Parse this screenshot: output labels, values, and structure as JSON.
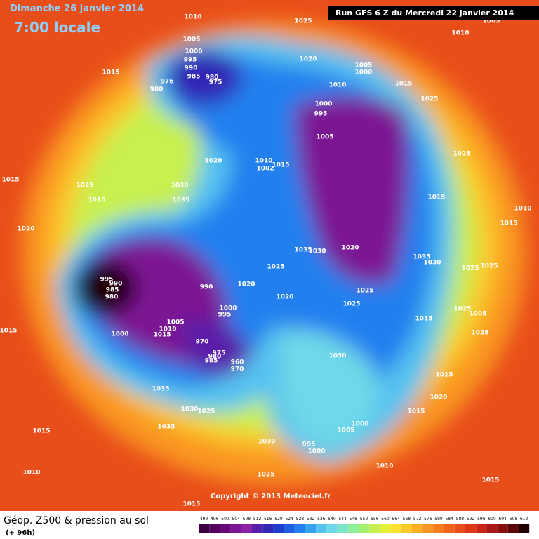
{
  "header": {
    "date": "Dimanche 26 janvier 2014",
    "time": "7:00 locale",
    "run": "Run GFS 6 Z du Mercredi 22 janvier 2014"
  },
  "footer": {
    "copyright": "Copyright © 2013 Meteociel.fr",
    "product": "Géop. Z500 & pression au sol",
    "lead": "(+ 96h)"
  },
  "scale": {
    "values": [
      492,
      496,
      500,
      504,
      508,
      512,
      516,
      520,
      524,
      528,
      532,
      536,
      540,
      544,
      548,
      552,
      556,
      560,
      564,
      568,
      572,
      576,
      580,
      584,
      588,
      592,
      596,
      600,
      604,
      608,
      612
    ],
    "colors": [
      "#3a0040",
      "#55005f",
      "#6a0a7a",
      "#7d1693",
      "#8a22a8",
      "#5a1fa8",
      "#3327b5",
      "#1f3fcc",
      "#1f5ee0",
      "#2480ee",
      "#35a2f0",
      "#55c2f0",
      "#6fd8e8",
      "#7ee6c8",
      "#8eee9a",
      "#a6f070",
      "#c8f050",
      "#e6f03a",
      "#fae232",
      "#fcc82c",
      "#fbae28",
      "#f99524",
      "#f57c20",
      "#f0641c",
      "#e84e1a",
      "#de3818",
      "#c82618",
      "#a81818",
      "#861010",
      "#5a0808",
      "#200000"
    ]
  },
  "isobars": [
    "1010",
    "1025",
    "1010",
    "1005",
    "1005",
    "1000",
    "995",
    "990",
    "985",
    "976",
    "980",
    "980",
    "975",
    "1015",
    "1020",
    "1005",
    "1000",
    "1010",
    "1015",
    "1025",
    "1000",
    "995",
    "1005",
    "1020",
    "1010",
    "1002",
    "1015",
    "1025",
    "1015",
    "1025",
    "1015",
    "1030",
    "1035",
    "1015",
    "1010",
    "1015",
    "1020",
    "1035",
    "1030",
    "1020",
    "1035",
    "1030",
    "1025",
    "1025",
    "995",
    "990",
    "985",
    "980",
    "990",
    "1025",
    "1020",
    "1025",
    "1020",
    "1000",
    "995",
    "1025",
    "1025",
    "1015",
    "1005",
    "1015",
    "1025",
    "1000",
    "1005",
    "1010",
    "1015",
    "970",
    "975",
    "980",
    "985",
    "960",
    "970",
    "1030",
    "1015",
    "1020",
    "1035",
    "1030",
    "1025",
    "1015",
    "1015",
    "1035",
    "1000",
    "1005",
    "1030",
    "995",
    "1000",
    "1010",
    "1010",
    "1025",
    "1015",
    "1015"
  ]
}
